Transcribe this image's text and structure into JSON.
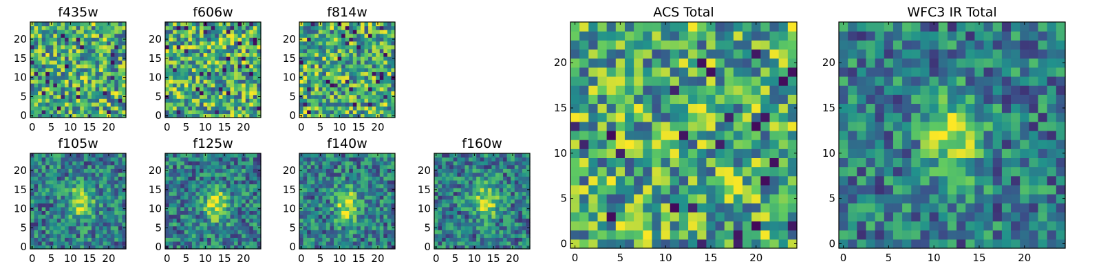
{
  "chart_data": {
    "type": "heatmap",
    "colormap": "viridis",
    "colorscale": [
      "#440154",
      "#3b528b",
      "#21918c",
      "#5ec962",
      "#fde725"
    ],
    "panels": [
      {
        "title": "f435w",
        "grid": [
          25,
          25
        ],
        "xlim": [
          0,
          24
        ],
        "ylim": [
          0,
          24
        ],
        "xticks": [
          0,
          5,
          10,
          15,
          20
        ],
        "yticks": [
          0,
          5,
          10,
          15,
          20
        ],
        "pattern": "noise",
        "seed": 11
      },
      {
        "title": "f606w",
        "grid": [
          25,
          25
        ],
        "xlim": [
          0,
          24
        ],
        "ylim": [
          0,
          24
        ],
        "xticks": [
          0,
          5,
          10,
          15,
          20
        ],
        "yticks": [
          0,
          5,
          10,
          15,
          20
        ],
        "pattern": "noise",
        "seed": 23
      },
      {
        "title": "f814w",
        "grid": [
          25,
          25
        ],
        "xlim": [
          0,
          24
        ],
        "ylim": [
          0,
          24
        ],
        "xticks": [
          0,
          5,
          10,
          15,
          20
        ],
        "yticks": [
          0,
          5,
          10,
          15,
          20
        ],
        "pattern": "noise",
        "seed": 37
      },
      {
        "title": "f105w",
        "grid": [
          25,
          25
        ],
        "xlim": [
          0,
          24
        ],
        "ylim": [
          0,
          24
        ],
        "xticks": [
          0,
          5,
          10,
          15,
          20
        ],
        "yticks": [
          0,
          5,
          10,
          15,
          20
        ],
        "pattern": "source",
        "source_center": [
          13,
          12
        ],
        "seed": 41
      },
      {
        "title": "f125w",
        "grid": [
          25,
          25
        ],
        "xlim": [
          0,
          24
        ],
        "ylim": [
          0,
          24
        ],
        "xticks": [
          0,
          5,
          10,
          15,
          20
        ],
        "yticks": [
          0,
          5,
          10,
          15,
          20
        ],
        "pattern": "source",
        "source_center": [
          13,
          11
        ],
        "seed": 53
      },
      {
        "title": "f140w",
        "grid": [
          25,
          25
        ],
        "xlim": [
          0,
          24
        ],
        "ylim": [
          0,
          24
        ],
        "xticks": [
          0,
          5,
          10,
          15,
          20
        ],
        "yticks": [
          0,
          5,
          10,
          15,
          20
        ],
        "pattern": "source",
        "source_center": [
          12,
          11
        ],
        "seed": 61
      },
      {
        "title": "f160w",
        "grid": [
          25,
          25
        ],
        "xlim": [
          0,
          24
        ],
        "ylim": [
          0,
          24
        ],
        "xticks": [
          0,
          5,
          10,
          15,
          20
        ],
        "yticks": [
          0,
          5,
          10,
          15,
          20
        ],
        "pattern": "source",
        "source_center": [
          13,
          12
        ],
        "seed": 73
      },
      {
        "title": "ACS Total",
        "grid": [
          25,
          25
        ],
        "xlim": [
          0,
          24
        ],
        "ylim": [
          0,
          24
        ],
        "xticks": [
          0,
          5,
          10,
          15,
          20
        ],
        "yticks": [
          0,
          5,
          10,
          15,
          20
        ],
        "pattern": "noise",
        "seed": 89
      },
      {
        "title": "WFC3 IR Total",
        "grid": [
          25,
          25
        ],
        "xlim": [
          0,
          24
        ],
        "ylim": [
          0,
          24
        ],
        "xticks": [
          0,
          5,
          10,
          15,
          20
        ],
        "yticks": [
          0,
          5,
          10,
          15,
          20
        ],
        "pattern": "source",
        "source_center": [
          12,
          12
        ],
        "seed": 97
      }
    ]
  }
}
